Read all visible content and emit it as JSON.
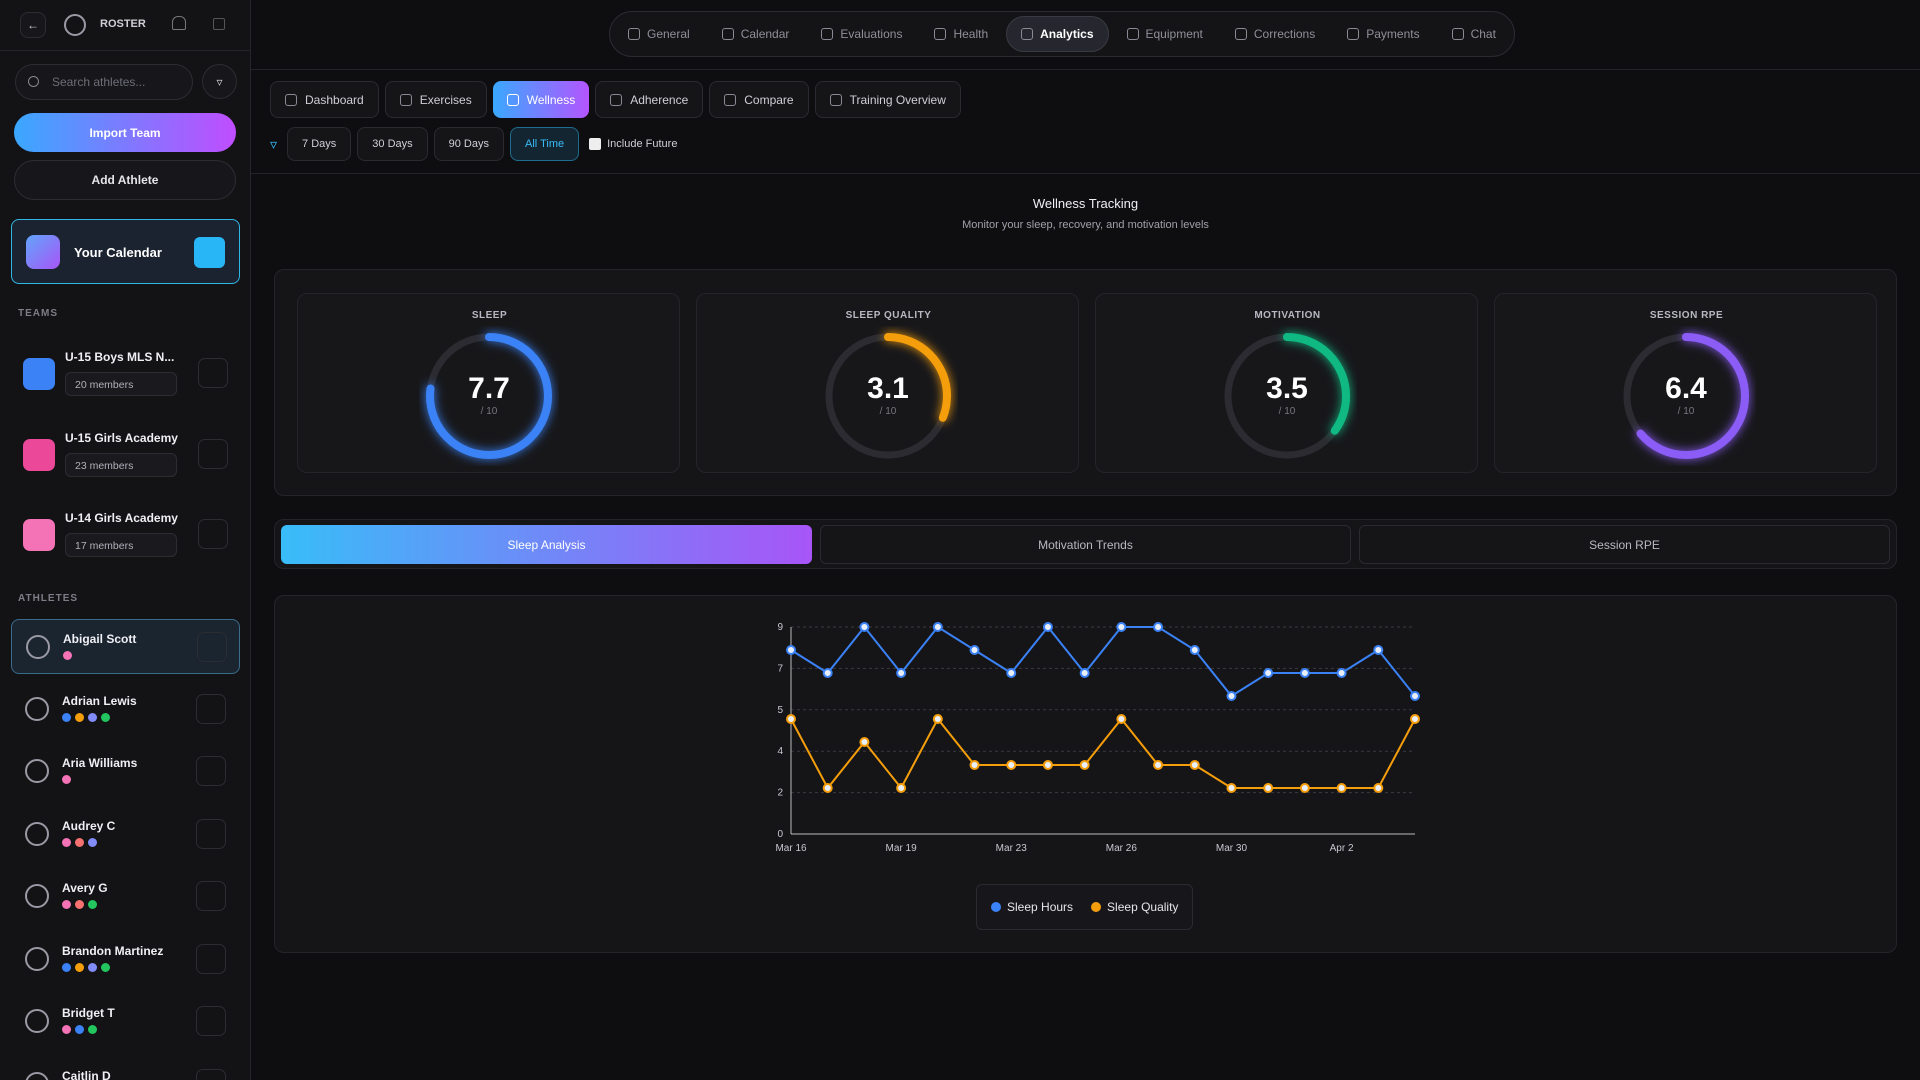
{
  "sidebar": {
    "title": "ROSTER",
    "search_placeholder": "Search athletes...",
    "import_button": "Import Team",
    "add_button": "Add Athlete",
    "calendar_card": "Your Calendar",
    "teams_heading": "TEAMS",
    "teams": [
      {
        "name": "U-15 Boys MLS N...",
        "members": "20 members",
        "color": "#3b82f6"
      },
      {
        "name": "U-15 Girls Academy",
        "members": "23 members",
        "color": "#ec4899"
      },
      {
        "name": "U-14 Girls Academy",
        "members": "17 members",
        "color": "#f472b6"
      }
    ],
    "athletes_heading": "ATHLETES",
    "athletes": [
      {
        "name": "Abigail Scott",
        "dots": [
          "#f472b6"
        ]
      },
      {
        "name": "Adrian Lewis",
        "dots": [
          "#3b82f6",
          "#f59e0b",
          "#818cf8",
          "#22c55e"
        ]
      },
      {
        "name": "Aria Williams",
        "dots": [
          "#f472b6"
        ]
      },
      {
        "name": "Audrey C",
        "dots": [
          "#f472b6",
          "#f87171",
          "#818cf8"
        ]
      },
      {
        "name": "Avery G",
        "dots": [
          "#f472b6",
          "#f87171",
          "#22c55e"
        ]
      },
      {
        "name": "Brandon Martinez",
        "dots": [
          "#3b82f6",
          "#f59e0b",
          "#818cf8",
          "#22c55e"
        ]
      },
      {
        "name": "Bridget T",
        "dots": [
          "#f472b6",
          "#3b82f6",
          "#22c55e"
        ]
      },
      {
        "name": "Caitlin D"
      }
    ]
  },
  "top_nav": {
    "tabs": [
      "General",
      "Calendar",
      "Evaluations",
      "Health",
      "Analytics",
      "Equipment",
      "Corrections",
      "Payments",
      "Chat"
    ],
    "active": 4
  },
  "sub_nav": {
    "tabs": [
      "Dashboard",
      "Exercises",
      "Wellness",
      "Adherence",
      "Compare",
      "Training Overview"
    ],
    "active": 2
  },
  "filters": {
    "ranges": [
      "7 Days",
      "30 Days",
      "90 Days",
      "All Time"
    ],
    "active": 3,
    "include_future": "Include Future"
  },
  "section": {
    "title": "Wellness Tracking",
    "subtitle": "Monitor your sleep, recovery, and motivation levels"
  },
  "gauges": [
    {
      "label": "SLEEP",
      "value": 7.7,
      "max": 10,
      "scale_label": "/ 10",
      "color": "#3b82f6"
    },
    {
      "label": "SLEEP QUALITY",
      "value": 3.1,
      "max": 10,
      "scale_label": "/ 10",
      "color": "#f59e0b"
    },
    {
      "label": "MOTIVATION",
      "value": 3.5,
      "max": 10,
      "scale_label": "/ 10",
      "color": "#10b981"
    },
    {
      "label": "SESSION RPE",
      "value": 6.4,
      "max": 10,
      "scale_label": "/ 10",
      "color": "#8b5cf6"
    }
  ],
  "chart_tabs": {
    "tabs": [
      "Sleep Analysis",
      "Motivation Trends",
      "Session RPE"
    ],
    "active": 0
  },
  "chart_data": {
    "type": "line",
    "categories": [
      "Mar 16",
      null,
      null,
      "Mar 19",
      null,
      null,
      "Mar 23",
      null,
      null,
      "Mar 26",
      null,
      null,
      "Mar 30",
      null,
      null,
      "Apr 2",
      null,
      null
    ],
    "series": [
      {
        "name": "Sleep Hours",
        "color": "#3b82f6",
        "values": [
          8,
          7,
          9,
          7,
          9,
          8,
          7,
          9,
          7,
          9,
          9,
          8,
          6,
          7,
          7,
          7,
          8,
          6
        ]
      },
      {
        "name": "Sleep Quality",
        "color": "#f59e0b",
        "values": [
          5,
          2,
          4,
          2,
          5,
          3,
          3,
          3,
          3,
          5,
          3,
          3,
          2,
          2,
          2,
          2,
          2,
          5
        ]
      }
    ],
    "ylim": [
      0,
      9
    ],
    "yticks": [
      0,
      {
        "value": 1.8,
        "label": "2"
      },
      {
        "value": 3.6,
        "label": "4"
      },
      {
        "value": 5.4,
        "label": "5"
      },
      {
        "value": 7.2,
        "label": "7"
      },
      9
    ],
    "grid": true
  }
}
